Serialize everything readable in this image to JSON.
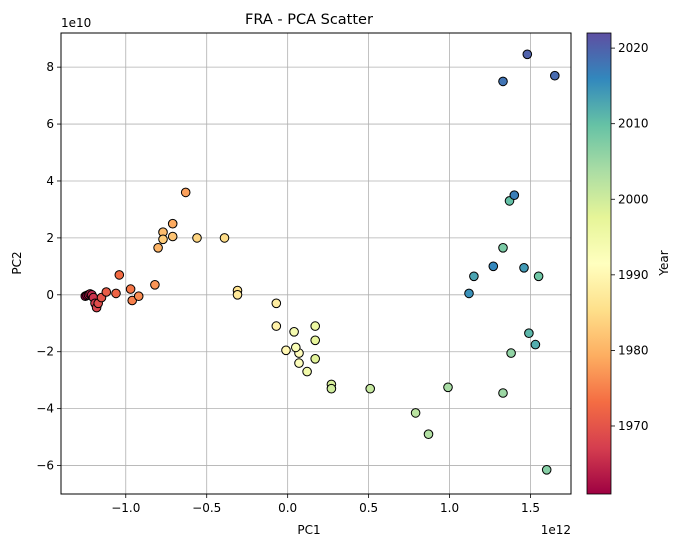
{
  "chart_data": {
    "type": "scatter",
    "title": "FRA - PCA Scatter",
    "xlabel": "PC1",
    "ylabel": "PC2",
    "x_exponent_label": "1e12",
    "y_exponent_label": "1e10",
    "xlim": [
      -1.4,
      1.75
    ],
    "ylim": [
      -7,
      9.2
    ],
    "xticks": [
      -1.0,
      -0.5,
      0.0,
      0.5,
      1.0,
      1.5
    ],
    "xtick_labels": [
      "−1.0",
      "−0.5",
      "0.0",
      "0.5",
      "1.0",
      "1.5"
    ],
    "yticks": [
      -6,
      -4,
      -2,
      0,
      2,
      4,
      6,
      8
    ],
    "ytick_labels": [
      "−6",
      "−4",
      "−2",
      "0",
      "2",
      "4",
      "6",
      "8"
    ],
    "grid": true,
    "colorbar": {
      "label": "Year",
      "colormap": "Spectral",
      "range": [
        1961,
        2022
      ],
      "ticks": [
        1970,
        1980,
        1990,
        2000,
        2010,
        2020
      ],
      "tick_labels": [
        "1970",
        "1980",
        "1990",
        "2000",
        "2010",
        "2020"
      ]
    },
    "points": [
      {
        "year": 1961,
        "x": -1.25,
        "y": -0.05
      },
      {
        "year": 1962,
        "x": -1.24,
        "y": -0.02
      },
      {
        "year": 1963,
        "x": -1.23,
        "y": 0.0
      },
      {
        "year": 1964,
        "x": -1.22,
        "y": 0.03
      },
      {
        "year": 1965,
        "x": -1.21,
        "y": 0.0
      },
      {
        "year": 1966,
        "x": -1.2,
        "y": -0.1
      },
      {
        "year": 1967,
        "x": -1.19,
        "y": -0.3
      },
      {
        "year": 1968,
        "x": -1.18,
        "y": -0.45
      },
      {
        "year": 1969,
        "x": -1.17,
        "y": -0.3
      },
      {
        "year": 1970,
        "x": -1.15,
        "y": -0.1
      },
      {
        "year": 1971,
        "x": -1.12,
        "y": 0.1
      },
      {
        "year": 1972,
        "x": -1.06,
        "y": 0.05
      },
      {
        "year": 1973,
        "x": -1.04,
        "y": 0.7
      },
      {
        "year": 1974,
        "x": -0.97,
        "y": 0.2
      },
      {
        "year": 1975,
        "x": -0.96,
        "y": -0.2
      },
      {
        "year": 1976,
        "x": -0.92,
        "y": -0.05
      },
      {
        "year": 1977,
        "x": -0.82,
        "y": 0.35
      },
      {
        "year": 1978,
        "x": -0.63,
        "y": 3.6
      },
      {
        "year": 1979,
        "x": -0.71,
        "y": 2.5
      },
      {
        "year": 1980,
        "x": -0.8,
        "y": 1.65
      },
      {
        "year": 1981,
        "x": -0.77,
        "y": 2.2
      },
      {
        "year": 1982,
        "x": -0.71,
        "y": 2.05
      },
      {
        "year": 1983,
        "x": -0.77,
        "y": 1.95
      },
      {
        "year": 1984,
        "x": -0.56,
        "y": 2.0
      },
      {
        "year": 1985,
        "x": -0.39,
        "y": 2.0
      },
      {
        "year": 1986,
        "x": -0.31,
        "y": 0.15
      },
      {
        "year": 1987,
        "x": -0.31,
        "y": 0.0
      },
      {
        "year": 1988,
        "x": -0.07,
        "y": -0.3
      },
      {
        "year": 1989,
        "x": -0.07,
        "y": -1.1
      },
      {
        "year": 1990,
        "x": -0.01,
        "y": -1.95
      },
      {
        "year": 1991,
        "x": 0.07,
        "y": -2.05
      },
      {
        "year": 1992,
        "x": 0.07,
        "y": -2.4
      },
      {
        "year": 1993,
        "x": 0.05,
        "y": -1.85
      },
      {
        "year": 1994,
        "x": 0.04,
        "y": -1.3
      },
      {
        "year": 1995,
        "x": 0.12,
        "y": -2.7
      },
      {
        "year": 1996,
        "x": 0.17,
        "y": -1.1
      },
      {
        "year": 1997,
        "x": 0.17,
        "y": -1.6
      },
      {
        "year": 1998,
        "x": 0.17,
        "y": -2.25
      },
      {
        "year": 1999,
        "x": 0.27,
        "y": -3.15
      },
      {
        "year": 2000,
        "x": 0.27,
        "y": -3.3
      },
      {
        "year": 2001,
        "x": 0.51,
        "y": -3.3
      },
      {
        "year": 2002,
        "x": 0.79,
        "y": -4.15
      },
      {
        "year": 2003,
        "x": 0.87,
        "y": -4.9
      },
      {
        "year": 2004,
        "x": 0.99,
        "y": -3.25
      },
      {
        "year": 2005,
        "x": 1.33,
        "y": -3.45
      },
      {
        "year": 2006,
        "x": 1.38,
        "y": -2.05
      },
      {
        "year": 2007,
        "x": 1.6,
        "y": -6.15
      },
      {
        "year": 2008,
        "x": 1.33,
        "y": 1.65
      },
      {
        "year": 2009,
        "x": 1.55,
        "y": 0.65
      },
      {
        "year": 2010,
        "x": 1.37,
        "y": 3.3
      },
      {
        "year": 2011,
        "x": 1.49,
        "y": -1.35
      },
      {
        "year": 2012,
        "x": 1.53,
        "y": -1.75
      },
      {
        "year": 2013,
        "x": 1.15,
        "y": 0.65
      },
      {
        "year": 2014,
        "x": 1.46,
        "y": 0.95
      },
      {
        "year": 2015,
        "x": 1.12,
        "y": 0.05
      },
      {
        "year": 2016,
        "x": 1.27,
        "y": 1.0
      },
      {
        "year": 2017,
        "x": 1.4,
        "y": 3.5
      },
      {
        "year": 2018,
        "x": 1.33,
        "y": 7.5
      },
      {
        "year": 2019,
        "x": 1.65,
        "y": 7.7
      },
      {
        "year": 2020,
        "x": 1.48,
        "y": 8.45
      }
    ]
  }
}
